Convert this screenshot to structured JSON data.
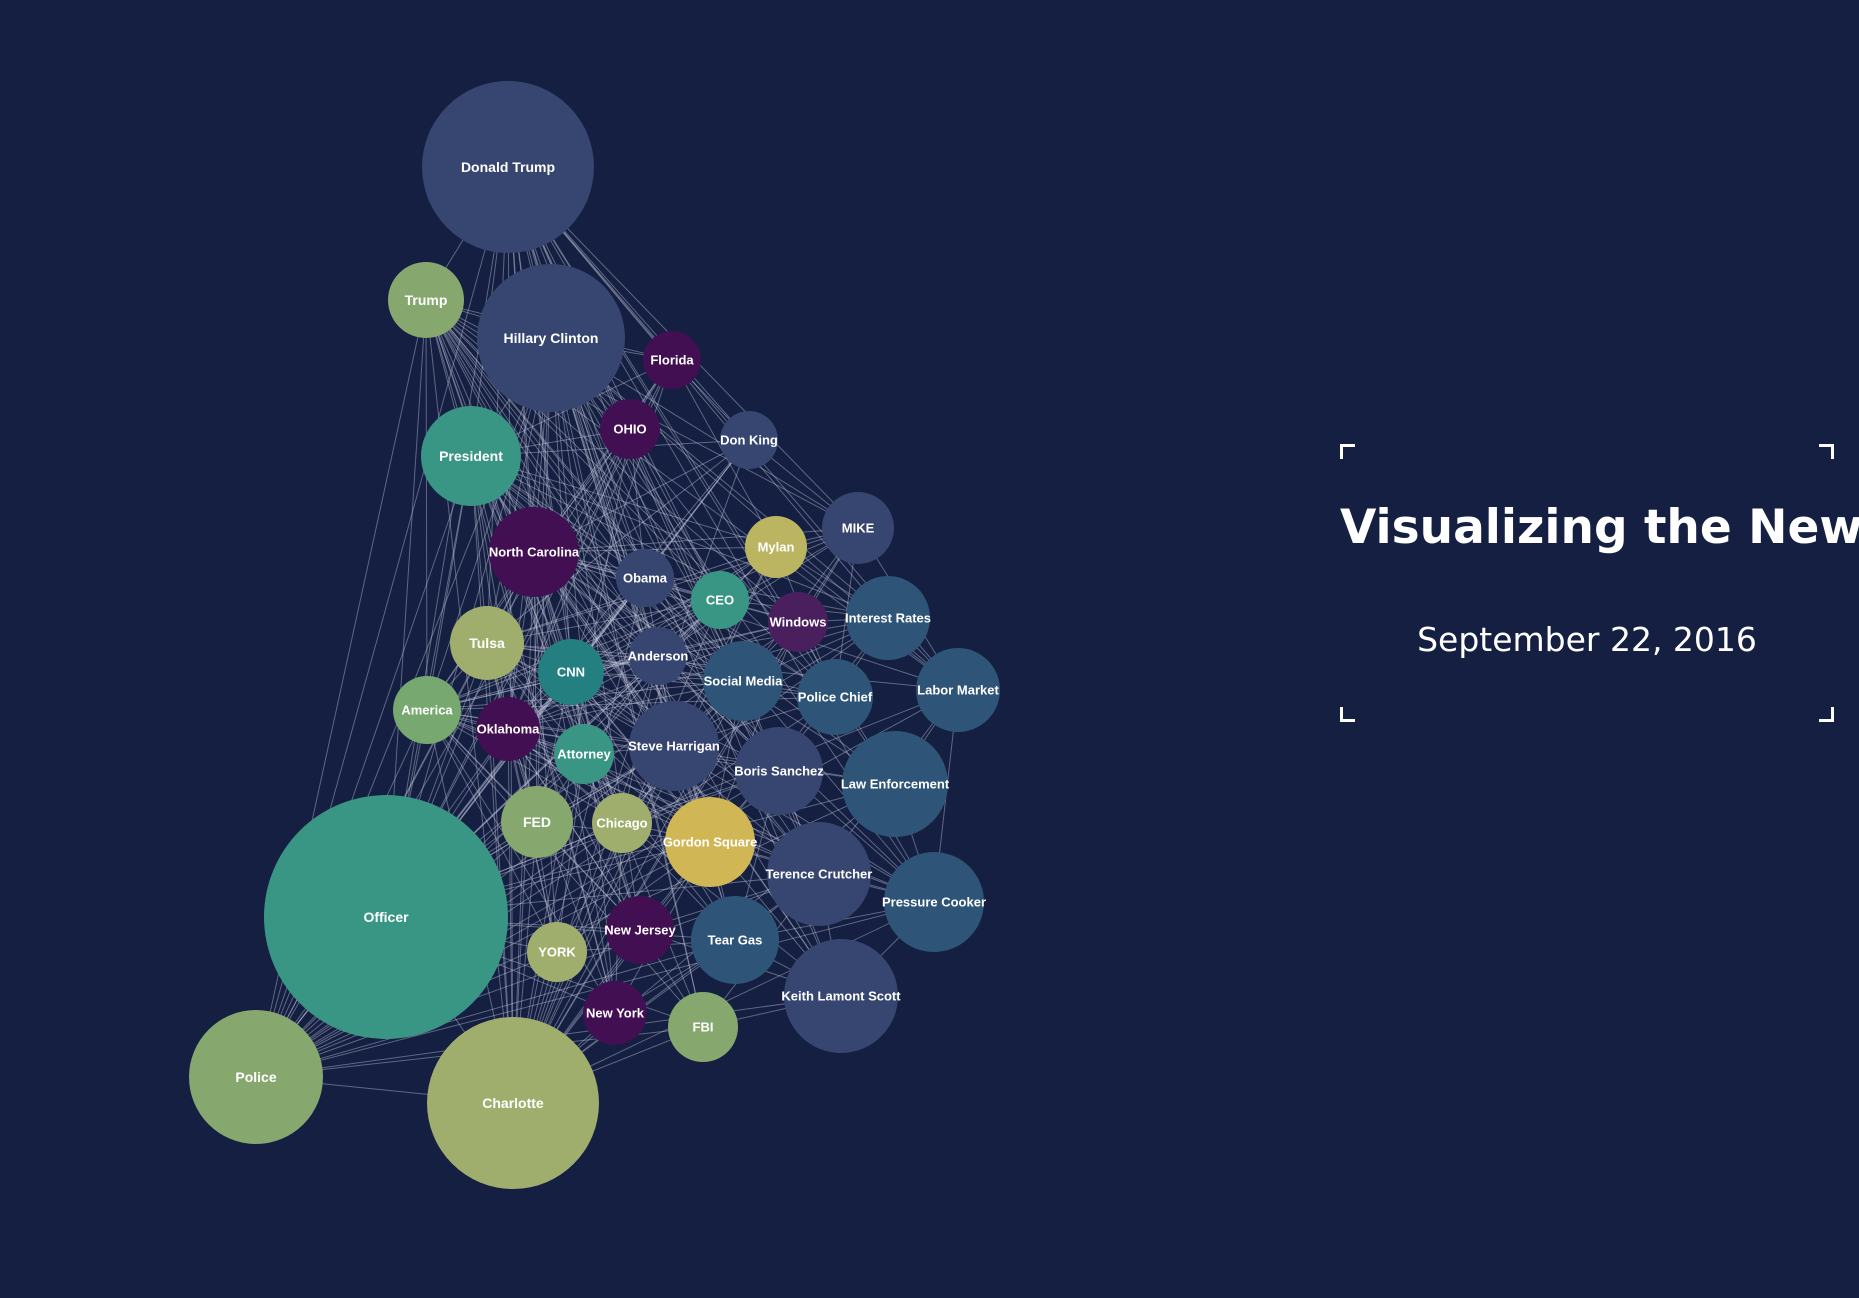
{
  "title": "Visualizing the News",
  "date": "September 22, 2016",
  "colors": {
    "background": "#141f41",
    "slate": "#374670",
    "steel": "#2e5577",
    "purple": "#420f52",
    "violet": "#4a1f5e",
    "teal": "#3a9684",
    "deep_teal": "#237f80",
    "sage": "#86a86e",
    "green": "#76a870",
    "olive": "#a0ae6d",
    "gold": "#d1b655",
    "khaki": "#bbb562"
  },
  "nodes": [
    {
      "id": "donald-trump",
      "label": "Donald Trump",
      "color": "slate"
    },
    {
      "id": "trump",
      "label": "Trump",
      "color": "sage"
    },
    {
      "id": "hillary-clinton",
      "label": "Hillary Clinton",
      "color": "slate"
    },
    {
      "id": "florida",
      "label": "Florida",
      "color": "purple"
    },
    {
      "id": "ohio",
      "label": "OHIO",
      "color": "purple"
    },
    {
      "id": "don-king",
      "label": "Don King",
      "color": "slate"
    },
    {
      "id": "president",
      "label": "President",
      "color": "teal"
    },
    {
      "id": "mike",
      "label": "MIKE",
      "color": "slate"
    },
    {
      "id": "north-carolina",
      "label": "North Carolina",
      "color": "purple"
    },
    {
      "id": "mylan",
      "label": "Mylan",
      "color": "khaki"
    },
    {
      "id": "obama",
      "label": "Obama",
      "color": "slate"
    },
    {
      "id": "ceo",
      "label": "CEO",
      "color": "teal"
    },
    {
      "id": "windows",
      "label": "Windows",
      "color": "violet"
    },
    {
      "id": "interest-rates",
      "label": "Interest Rates",
      "color": "steel"
    },
    {
      "id": "tulsa",
      "label": "Tulsa",
      "color": "olive"
    },
    {
      "id": "anderson",
      "label": "Anderson",
      "color": "slate"
    },
    {
      "id": "cnn",
      "label": "CNN",
      "color": "deep_teal"
    },
    {
      "id": "social-media",
      "label": "Social Media",
      "color": "steel"
    },
    {
      "id": "police-chief",
      "label": "Police Chief",
      "color": "steel"
    },
    {
      "id": "labor-market",
      "label": "Labor Market",
      "color": "steel"
    },
    {
      "id": "america",
      "label": "America",
      "color": "green"
    },
    {
      "id": "oklahoma",
      "label": "Oklahoma",
      "color": "purple"
    },
    {
      "id": "attorney",
      "label": "Attorney",
      "color": "teal"
    },
    {
      "id": "steve-harrigan",
      "label": "Steve Harrigan",
      "color": "slate"
    },
    {
      "id": "boris-sanchez",
      "label": "Boris Sanchez",
      "color": "slate"
    },
    {
      "id": "law-enforcement",
      "label": "Law Enforcement",
      "color": "steel"
    },
    {
      "id": "fed",
      "label": "FED",
      "color": "sage"
    },
    {
      "id": "chicago",
      "label": "Chicago",
      "color": "olive"
    },
    {
      "id": "gordon-square",
      "label": "Gordon Square",
      "color": "gold"
    },
    {
      "id": "terence-crutcher",
      "label": "Terence Crutcher",
      "color": "slate"
    },
    {
      "id": "officer",
      "label": "Officer",
      "color": "teal"
    },
    {
      "id": "pressure-cooker",
      "label": "Pressure Cooker",
      "color": "steel"
    },
    {
      "id": "new-jersey",
      "label": "New Jersey",
      "color": "purple"
    },
    {
      "id": "york",
      "label": "YORK",
      "color": "olive"
    },
    {
      "id": "tear-gas",
      "label": "Tear Gas",
      "color": "steel"
    },
    {
      "id": "keith-lamont-scott",
      "label": "Keith Lamont Scott",
      "color": "slate"
    },
    {
      "id": "new-york",
      "label": "New York",
      "color": "purple"
    },
    {
      "id": "fbi",
      "label": "FBI",
      "color": "sage"
    },
    {
      "id": "police",
      "label": "Police",
      "color": "sage"
    },
    {
      "id": "charlotte",
      "label": "Charlotte",
      "color": "olive"
    }
  ]
}
